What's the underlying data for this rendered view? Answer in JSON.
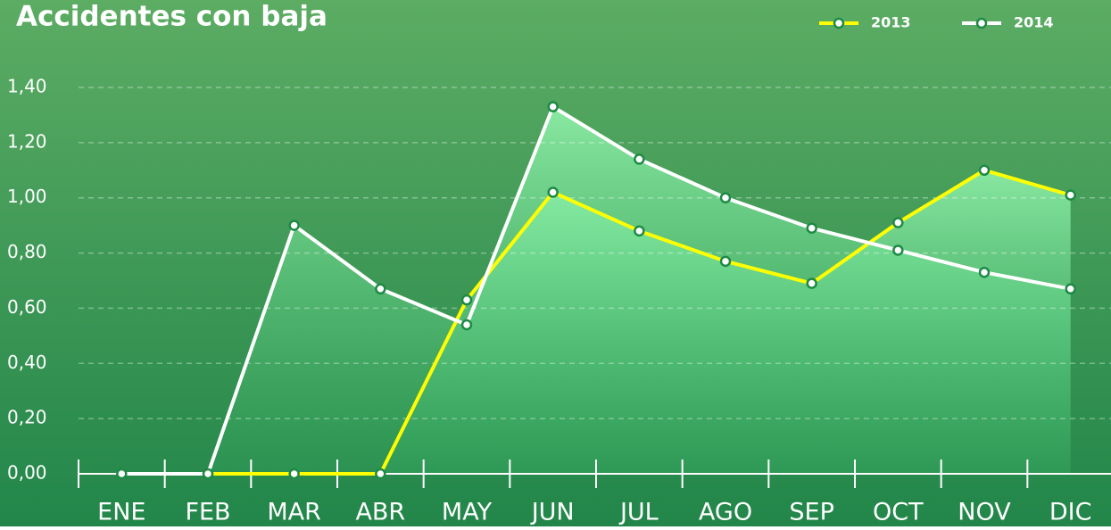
{
  "chart_data": {
    "type": "line",
    "title": "Accidentes con baja",
    "categories": [
      "ENE",
      "FEB",
      "MAR",
      "ABR",
      "MAY",
      "JUN",
      "JUL",
      "AGO",
      "SEP",
      "OCT",
      "NOV",
      "DIC"
    ],
    "series": [
      {
        "name": "2013",
        "color": "#ffff00",
        "values": [
          null,
          0,
          0,
          0,
          0.63,
          1.02,
          0.88,
          0.77,
          0.69,
          0.91,
          1.1,
          1.01
        ]
      },
      {
        "name": "2014",
        "color": "#ffffff",
        "values": [
          0,
          0,
          0.9,
          0.67,
          0.54,
          1.33,
          1.14,
          1.0,
          0.89,
          0.81,
          0.73,
          0.67
        ]
      }
    ],
    "ylim": [
      0,
      1.4
    ],
    "yticks": [
      {
        "value": 0,
        "label": "0,00"
      },
      {
        "value": 0.2,
        "label": "0,20"
      },
      {
        "value": 0.4,
        "label": "0,40"
      },
      {
        "value": 0.6,
        "label": "0,60"
      },
      {
        "value": 0.8,
        "label": "0,80"
      },
      {
        "value": 1.0,
        "label": "1,00"
      },
      {
        "value": 1.2,
        "label": "1,20"
      },
      {
        "value": 1.4,
        "label": "1,40"
      }
    ],
    "grid": true,
    "legend": "top-right"
  }
}
